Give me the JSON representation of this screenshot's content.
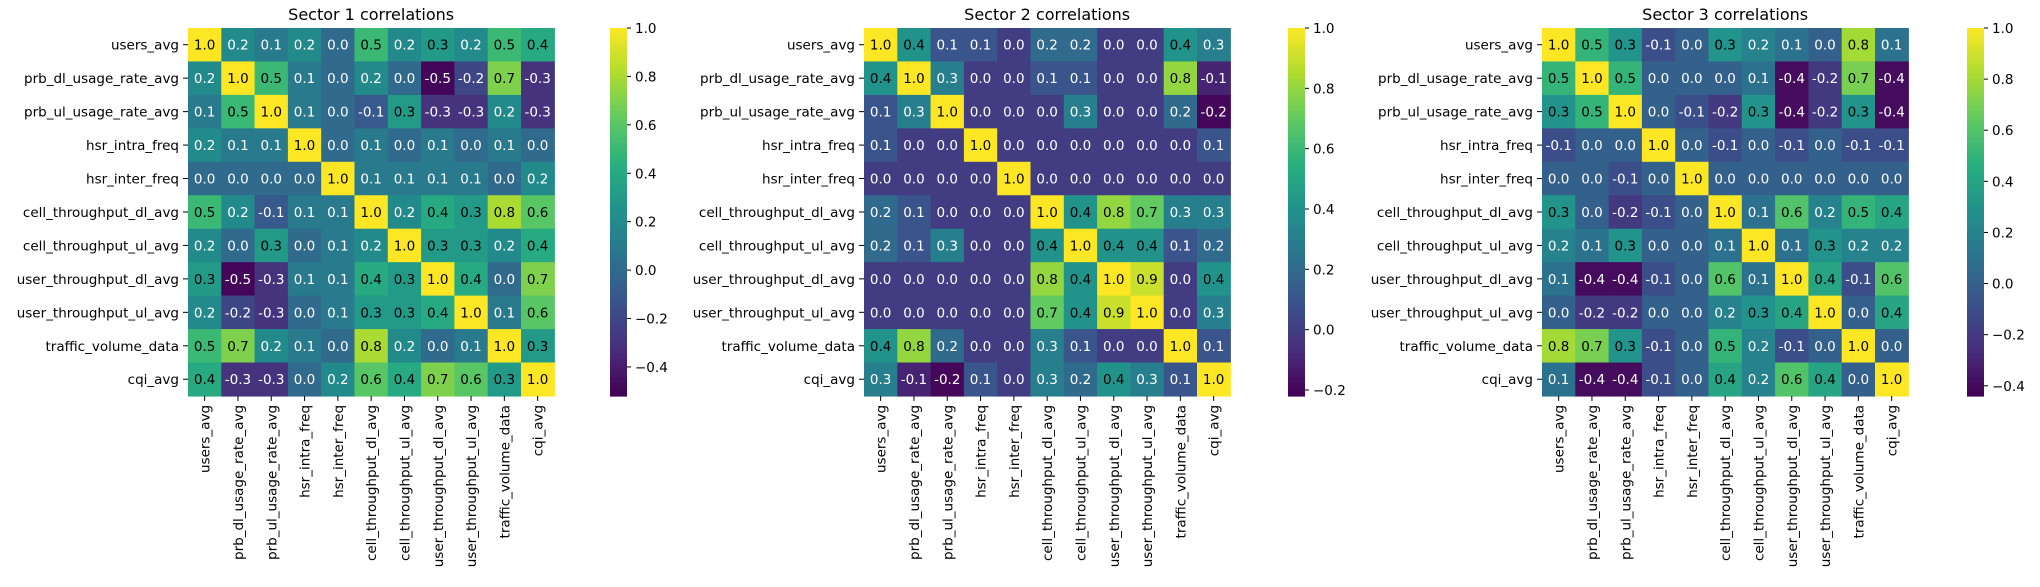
{
  "chart_data": [
    {
      "type": "heatmap",
      "title": "Sector 1 correlations",
      "labels": [
        "users_avg",
        "prb_dl_usage_rate_avg",
        "prb_ul_usage_rate_avg",
        "hsr_intra_freq",
        "hsr_inter_freq",
        "cell_throughput_dl_avg",
        "cell_throughput_ul_avg",
        "user_throughput_dl_avg",
        "user_throughput_ul_avg",
        "traffic_volume_data",
        "cqi_avg"
      ],
      "values": [
        [
          1.0,
          0.2,
          0.1,
          0.2,
          0.0,
          0.5,
          0.2,
          0.3,
          0.2,
          0.5,
          0.4
        ],
        [
          0.2,
          1.0,
          0.5,
          0.1,
          -0.0,
          0.2,
          -0.0,
          -0.5,
          -0.2,
          0.7,
          -0.3
        ],
        [
          0.1,
          0.5,
          1.0,
          0.1,
          -0.0,
          -0.1,
          0.3,
          -0.3,
          -0.3,
          0.2,
          -0.3
        ],
        [
          0.2,
          0.1,
          0.1,
          1.0,
          -0.0,
          0.1,
          0.0,
          0.1,
          -0.0,
          0.1,
          0.0
        ],
        [
          0.0,
          -0.0,
          -0.0,
          -0.0,
          1.0,
          0.1,
          0.1,
          0.1,
          0.1,
          0.0,
          0.2
        ],
        [
          0.5,
          0.2,
          -0.1,
          0.1,
          0.1,
          1.0,
          0.2,
          0.4,
          0.3,
          0.8,
          0.6
        ],
        [
          0.2,
          -0.0,
          0.3,
          0.0,
          0.1,
          0.2,
          1.0,
          0.3,
          0.3,
          0.2,
          0.4
        ],
        [
          0.3,
          -0.5,
          -0.3,
          0.1,
          0.1,
          0.4,
          0.3,
          1.0,
          0.4,
          -0.0,
          0.7
        ],
        [
          0.2,
          -0.2,
          -0.3,
          -0.0,
          0.1,
          0.3,
          0.3,
          0.4,
          1.0,
          0.1,
          0.6
        ],
        [
          0.5,
          0.7,
          0.2,
          0.1,
          0.0,
          0.8,
          0.2,
          -0.0,
          0.1,
          1.0,
          0.3
        ],
        [
          0.4,
          -0.3,
          -0.3,
          0.0,
          0.2,
          0.6,
          0.4,
          0.7,
          0.6,
          0.3,
          1.0
        ]
      ],
      "vmin": -0.52,
      "vmax": 1.0,
      "colorbar_ticks": [
        "1.0",
        "0.8",
        "0.6",
        "0.4",
        "0.2",
        "0.0",
        "−0.2",
        "−0.4"
      ],
      "colorbar_tick_values": [
        1.0,
        0.8,
        0.6,
        0.4,
        0.2,
        0.0,
        -0.2,
        -0.4
      ],
      "colormap": "viridis"
    },
    {
      "type": "heatmap",
      "title": "Sector 2 correlations",
      "labels": [
        "users_avg",
        "prb_dl_usage_rate_avg",
        "prb_ul_usage_rate_avg",
        "hsr_intra_freq",
        "hsr_inter_freq",
        "cell_throughput_dl_avg",
        "cell_throughput_ul_avg",
        "user_throughput_dl_avg",
        "user_throughput_ul_avg",
        "traffic_volume_data",
        "cqi_avg"
      ],
      "values": [
        [
          1.0,
          0.4,
          0.1,
          0.1,
          0.0,
          0.2,
          0.2,
          -0.0,
          -0.0,
          0.4,
          0.3
        ],
        [
          0.4,
          1.0,
          0.3,
          0.0,
          0.0,
          0.1,
          0.1,
          -0.0,
          -0.0,
          0.8,
          -0.1
        ],
        [
          0.1,
          0.3,
          1.0,
          -0.0,
          -0.0,
          -0.0,
          0.3,
          -0.0,
          -0.0,
          0.2,
          -0.2
        ],
        [
          0.1,
          0.0,
          -0.0,
          1.0,
          -0.0,
          0.0,
          0.0,
          0.0,
          0.0,
          0.0,
          0.1
        ],
        [
          0.0,
          0.0,
          -0.0,
          -0.0,
          1.0,
          0.0,
          0.0,
          0.0,
          0.0,
          -0.0,
          0.0
        ],
        [
          0.2,
          0.1,
          -0.0,
          0.0,
          0.0,
          1.0,
          0.4,
          0.8,
          0.7,
          0.3,
          0.3
        ],
        [
          0.2,
          0.1,
          0.3,
          0.0,
          0.0,
          0.4,
          1.0,
          0.4,
          0.4,
          0.1,
          0.2
        ],
        [
          -0.0,
          -0.0,
          -0.0,
          0.0,
          0.0,
          0.8,
          0.4,
          1.0,
          0.9,
          -0.0,
          0.4
        ],
        [
          -0.0,
          -0.0,
          -0.0,
          0.0,
          0.0,
          0.7,
          0.4,
          0.9,
          1.0,
          -0.0,
          0.3
        ],
        [
          0.4,
          0.8,
          0.2,
          0.0,
          -0.0,
          0.3,
          0.1,
          -0.0,
          -0.0,
          1.0,
          0.1
        ],
        [
          0.3,
          -0.1,
          -0.2,
          0.1,
          0.0,
          0.3,
          0.2,
          0.4,
          0.3,
          0.1,
          1.0
        ]
      ],
      "vmin": -0.22,
      "vmax": 1.0,
      "colorbar_ticks": [
        "1.0",
        "0.8",
        "0.6",
        "0.4",
        "0.2",
        "0.0",
        "−0.2"
      ],
      "colorbar_tick_values": [
        1.0,
        0.8,
        0.6,
        0.4,
        0.2,
        0.0,
        -0.2
      ],
      "colormap": "viridis"
    },
    {
      "type": "heatmap",
      "title": "Sector 3 correlations",
      "labels": [
        "users_avg",
        "prb_dl_usage_rate_avg",
        "prb_ul_usage_rate_avg",
        "hsr_intra_freq",
        "hsr_inter_freq",
        "cell_throughput_dl_avg",
        "cell_throughput_ul_avg",
        "user_throughput_dl_avg",
        "user_throughput_ul_avg",
        "traffic_volume_data",
        "cqi_avg"
      ],
      "values": [
        [
          1.0,
          0.5,
          0.3,
          -0.1,
          -0.0,
          0.3,
          0.2,
          0.1,
          -0.0,
          0.8,
          0.1
        ],
        [
          0.5,
          1.0,
          0.5,
          0.0,
          -0.0,
          0.0,
          0.1,
          -0.4,
          -0.2,
          0.7,
          -0.4
        ],
        [
          0.3,
          0.5,
          1.0,
          0.0,
          -0.1,
          -0.2,
          0.3,
          -0.4,
          -0.2,
          0.3,
          -0.4
        ],
        [
          -0.1,
          0.0,
          0.0,
          1.0,
          0.0,
          -0.1,
          -0.0,
          -0.1,
          -0.0,
          -0.1,
          -0.1
        ],
        [
          -0.0,
          -0.0,
          -0.1,
          0.0,
          1.0,
          0.0,
          0.0,
          0.0,
          0.0,
          0.0,
          0.0
        ],
        [
          0.3,
          0.0,
          -0.2,
          -0.1,
          0.0,
          1.0,
          0.1,
          0.6,
          0.2,
          0.5,
          0.4
        ],
        [
          0.2,
          0.1,
          0.3,
          -0.0,
          0.0,
          0.1,
          1.0,
          0.1,
          0.3,
          0.2,
          0.2
        ],
        [
          0.1,
          -0.4,
          -0.4,
          -0.1,
          0.0,
          0.6,
          0.1,
          1.0,
          0.4,
          -0.1,
          0.6
        ],
        [
          -0.0,
          -0.2,
          -0.2,
          -0.0,
          0.0,
          0.2,
          0.3,
          0.4,
          1.0,
          0.0,
          0.4
        ],
        [
          0.8,
          0.7,
          0.3,
          -0.1,
          0.0,
          0.5,
          0.2,
          -0.1,
          0.0,
          1.0,
          -0.0
        ],
        [
          0.1,
          -0.4,
          -0.4,
          -0.1,
          0.0,
          0.4,
          0.2,
          0.6,
          0.4,
          -0.0,
          1.0
        ]
      ],
      "vmin": -0.44,
      "vmax": 1.0,
      "colorbar_ticks": [
        "1.0",
        "0.8",
        "0.6",
        "0.4",
        "0.2",
        "0.0",
        "−0.2",
        "−0.4"
      ],
      "colorbar_tick_values": [
        1.0,
        0.8,
        0.6,
        0.4,
        0.2,
        0.0,
        -0.2,
        -0.4
      ],
      "colormap": "viridis"
    }
  ]
}
